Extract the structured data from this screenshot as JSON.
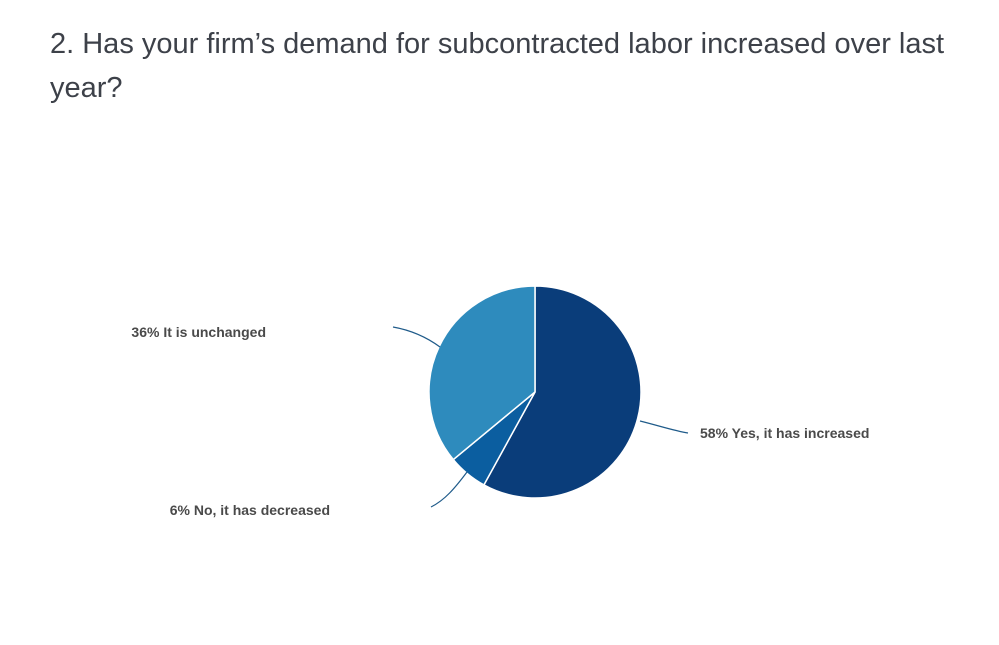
{
  "chart_data": {
    "type": "pie",
    "title": "2. Has your firm’s demand for subcontracted labor increased over last year?",
    "slices": [
      {
        "label": "Yes, it has increased",
        "value": 58,
        "value_text": "58%",
        "color": "#0a3d7a"
      },
      {
        "label": "No, it has decreased",
        "value": 6,
        "value_text": "6%",
        "color": "#0b5ea0"
      },
      {
        "label": "It is unchanged",
        "value": 36,
        "value_text": "36%",
        "color": "#2e8bbd"
      }
    ],
    "start_angle_deg": 0,
    "direction": "clockwise",
    "leader_line_color": "#1f5b8a"
  }
}
